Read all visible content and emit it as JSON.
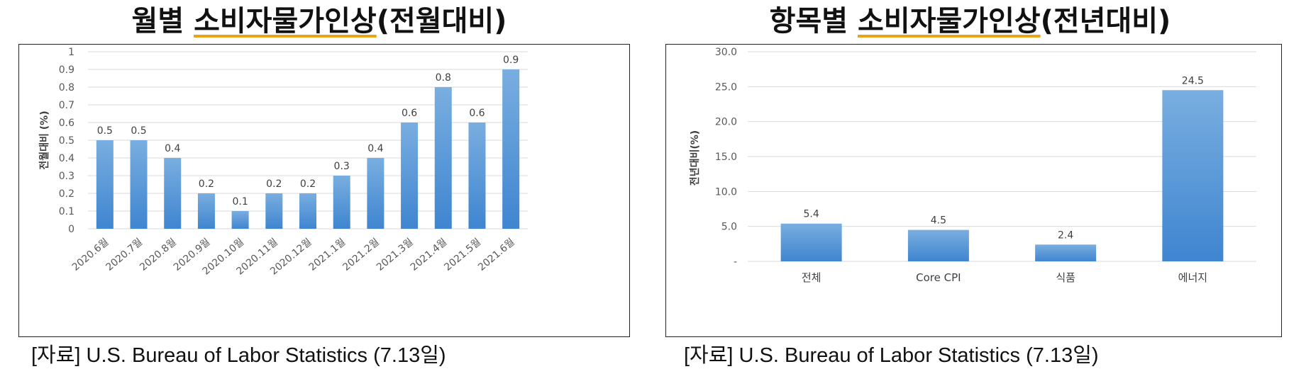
{
  "left": {
    "title_pre": "월별 ",
    "title_u": "소비자물가인상",
    "title_post": "(전월대비)",
    "source": "[자료] U.S. Bureau of Labor Statistics (7.13일)"
  },
  "right": {
    "title_pre": "항목별 ",
    "title_u": "소비자물가인상",
    "title_post": "(전년대비)",
    "source": "[자료] U.S. Bureau of Labor Statistics (7.13일)"
  },
  "colors": {
    "bar_top": "#79aee0",
    "bar_bottom": "#3f85d0",
    "grid": "#d9d9d9",
    "accent_underline": "#e8a317"
  },
  "chart_data": [
    {
      "type": "bar",
      "categories": [
        "2020.6월",
        "2020.7월",
        "2020.8월",
        "2020.9월",
        "2020.10월",
        "2020.11월",
        "2020.12월",
        "2021.1월",
        "2021.2월",
        "2021.3월",
        "2021.4월",
        "2021.5월",
        "2021.6월"
      ],
      "values": [
        0.5,
        0.5,
        0.4,
        0.2,
        0.1,
        0.2,
        0.2,
        0.3,
        0.4,
        0.6,
        0.8,
        0.6,
        0.9
      ],
      "value_labels": [
        "0.5",
        "0.5",
        "0.4",
        "0.2",
        "0.1",
        "0.2",
        "0.2",
        "0.3",
        "0.4",
        "0.6",
        "0.8",
        "0.6",
        "0.9"
      ],
      "ylabel": "전월대비 (%)",
      "ylim": [
        0,
        1
      ],
      "yticks": [
        "0",
        "0.1",
        "0.2",
        "0.3",
        "0.4",
        "0.5",
        "0.6",
        "0.7",
        "0.8",
        "0.9",
        "1"
      ],
      "grid": true
    },
    {
      "type": "bar",
      "categories": [
        "전체",
        "Core CPI",
        "식품",
        "에너지"
      ],
      "values": [
        5.4,
        4.5,
        2.4,
        24.5
      ],
      "value_labels": [
        "5.4",
        "4.5",
        "2.4",
        "24.5"
      ],
      "ylabel": "전년대비(%)",
      "ylim": [
        0,
        30
      ],
      "yticks": [
        "-",
        "5.0",
        "10.0",
        "15.0",
        "20.0",
        "25.0",
        "30.0"
      ],
      "grid": true
    }
  ]
}
